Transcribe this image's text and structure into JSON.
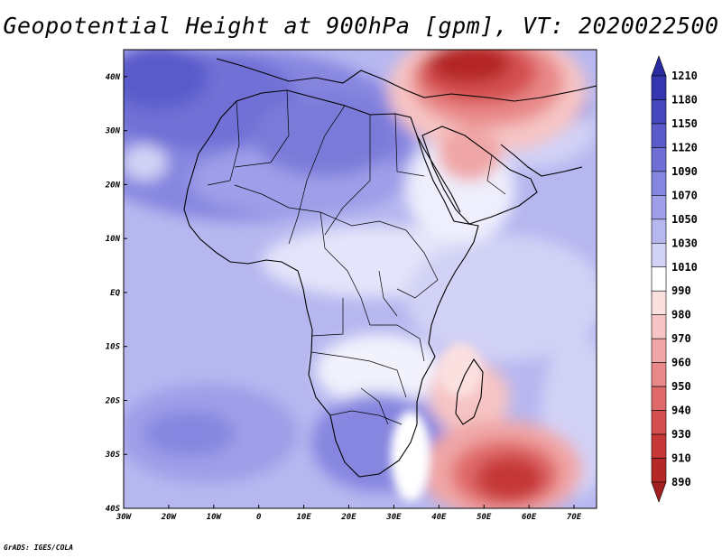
{
  "title": "Geopotential Height at 900hPa [gpm], VT: 2020022500",
  "credit": "GrADS: IGES/COLA",
  "map": {
    "lon_range": [
      -30,
      75
    ],
    "lat_range": [
      -40,
      45
    ],
    "lon_ticks": [
      {
        "value": -30,
        "label": "30W"
      },
      {
        "value": -20,
        "label": "20W"
      },
      {
        "value": -10,
        "label": "10W"
      },
      {
        "value": 0,
        "label": "0"
      },
      {
        "value": 10,
        "label": "10E"
      },
      {
        "value": 20,
        "label": "20E"
      },
      {
        "value": 30,
        "label": "30E"
      },
      {
        "value": 40,
        "label": "40E"
      },
      {
        "value": 50,
        "label": "50E"
      },
      {
        "value": 60,
        "label": "60E"
      },
      {
        "value": 70,
        "label": "70E"
      }
    ],
    "lat_ticks": [
      {
        "value": 40,
        "label": "40N"
      },
      {
        "value": 30,
        "label": "30N"
      },
      {
        "value": 20,
        "label": "20N"
      },
      {
        "value": 10,
        "label": "10N"
      },
      {
        "value": 0,
        "label": "EQ"
      },
      {
        "value": -10,
        "label": "10S"
      },
      {
        "value": -20,
        "label": "20S"
      },
      {
        "value": -30,
        "label": "30S"
      },
      {
        "value": -40,
        "label": "40S"
      }
    ]
  },
  "colorbar": {
    "top_label": "1210",
    "bottom_label": "890",
    "bins": [
      {
        "label": "1180",
        "color": "#3636b0"
      },
      {
        "label": "1150",
        "color": "#4747bd"
      },
      {
        "label": "1120",
        "color": "#5a5acb"
      },
      {
        "label": "1090",
        "color": "#6f6fd6"
      },
      {
        "label": "1070",
        "color": "#8686e0"
      },
      {
        "label": "1050",
        "color": "#9e9ee9"
      },
      {
        "label": "1030",
        "color": "#b7b7f0"
      },
      {
        "label": "1010",
        "color": "#d2d2f6"
      },
      {
        "label": "990",
        "color": "#ffffff"
      },
      {
        "label": "980",
        "color": "#fbe0e0"
      },
      {
        "label": "970",
        "color": "#f6c4c4"
      },
      {
        "label": "960",
        "color": "#f0a6a6"
      },
      {
        "label": "950",
        "color": "#e98888"
      },
      {
        "label": "940",
        "color": "#e06a6a"
      },
      {
        "label": "930",
        "color": "#d44f4f"
      },
      {
        "label": "910",
        "color": "#c63838"
      },
      {
        "label": "890",
        "color": "#b52828"
      }
    ],
    "top_color": "#2a2aa0",
    "bottom_color": "#a31f1f"
  }
}
